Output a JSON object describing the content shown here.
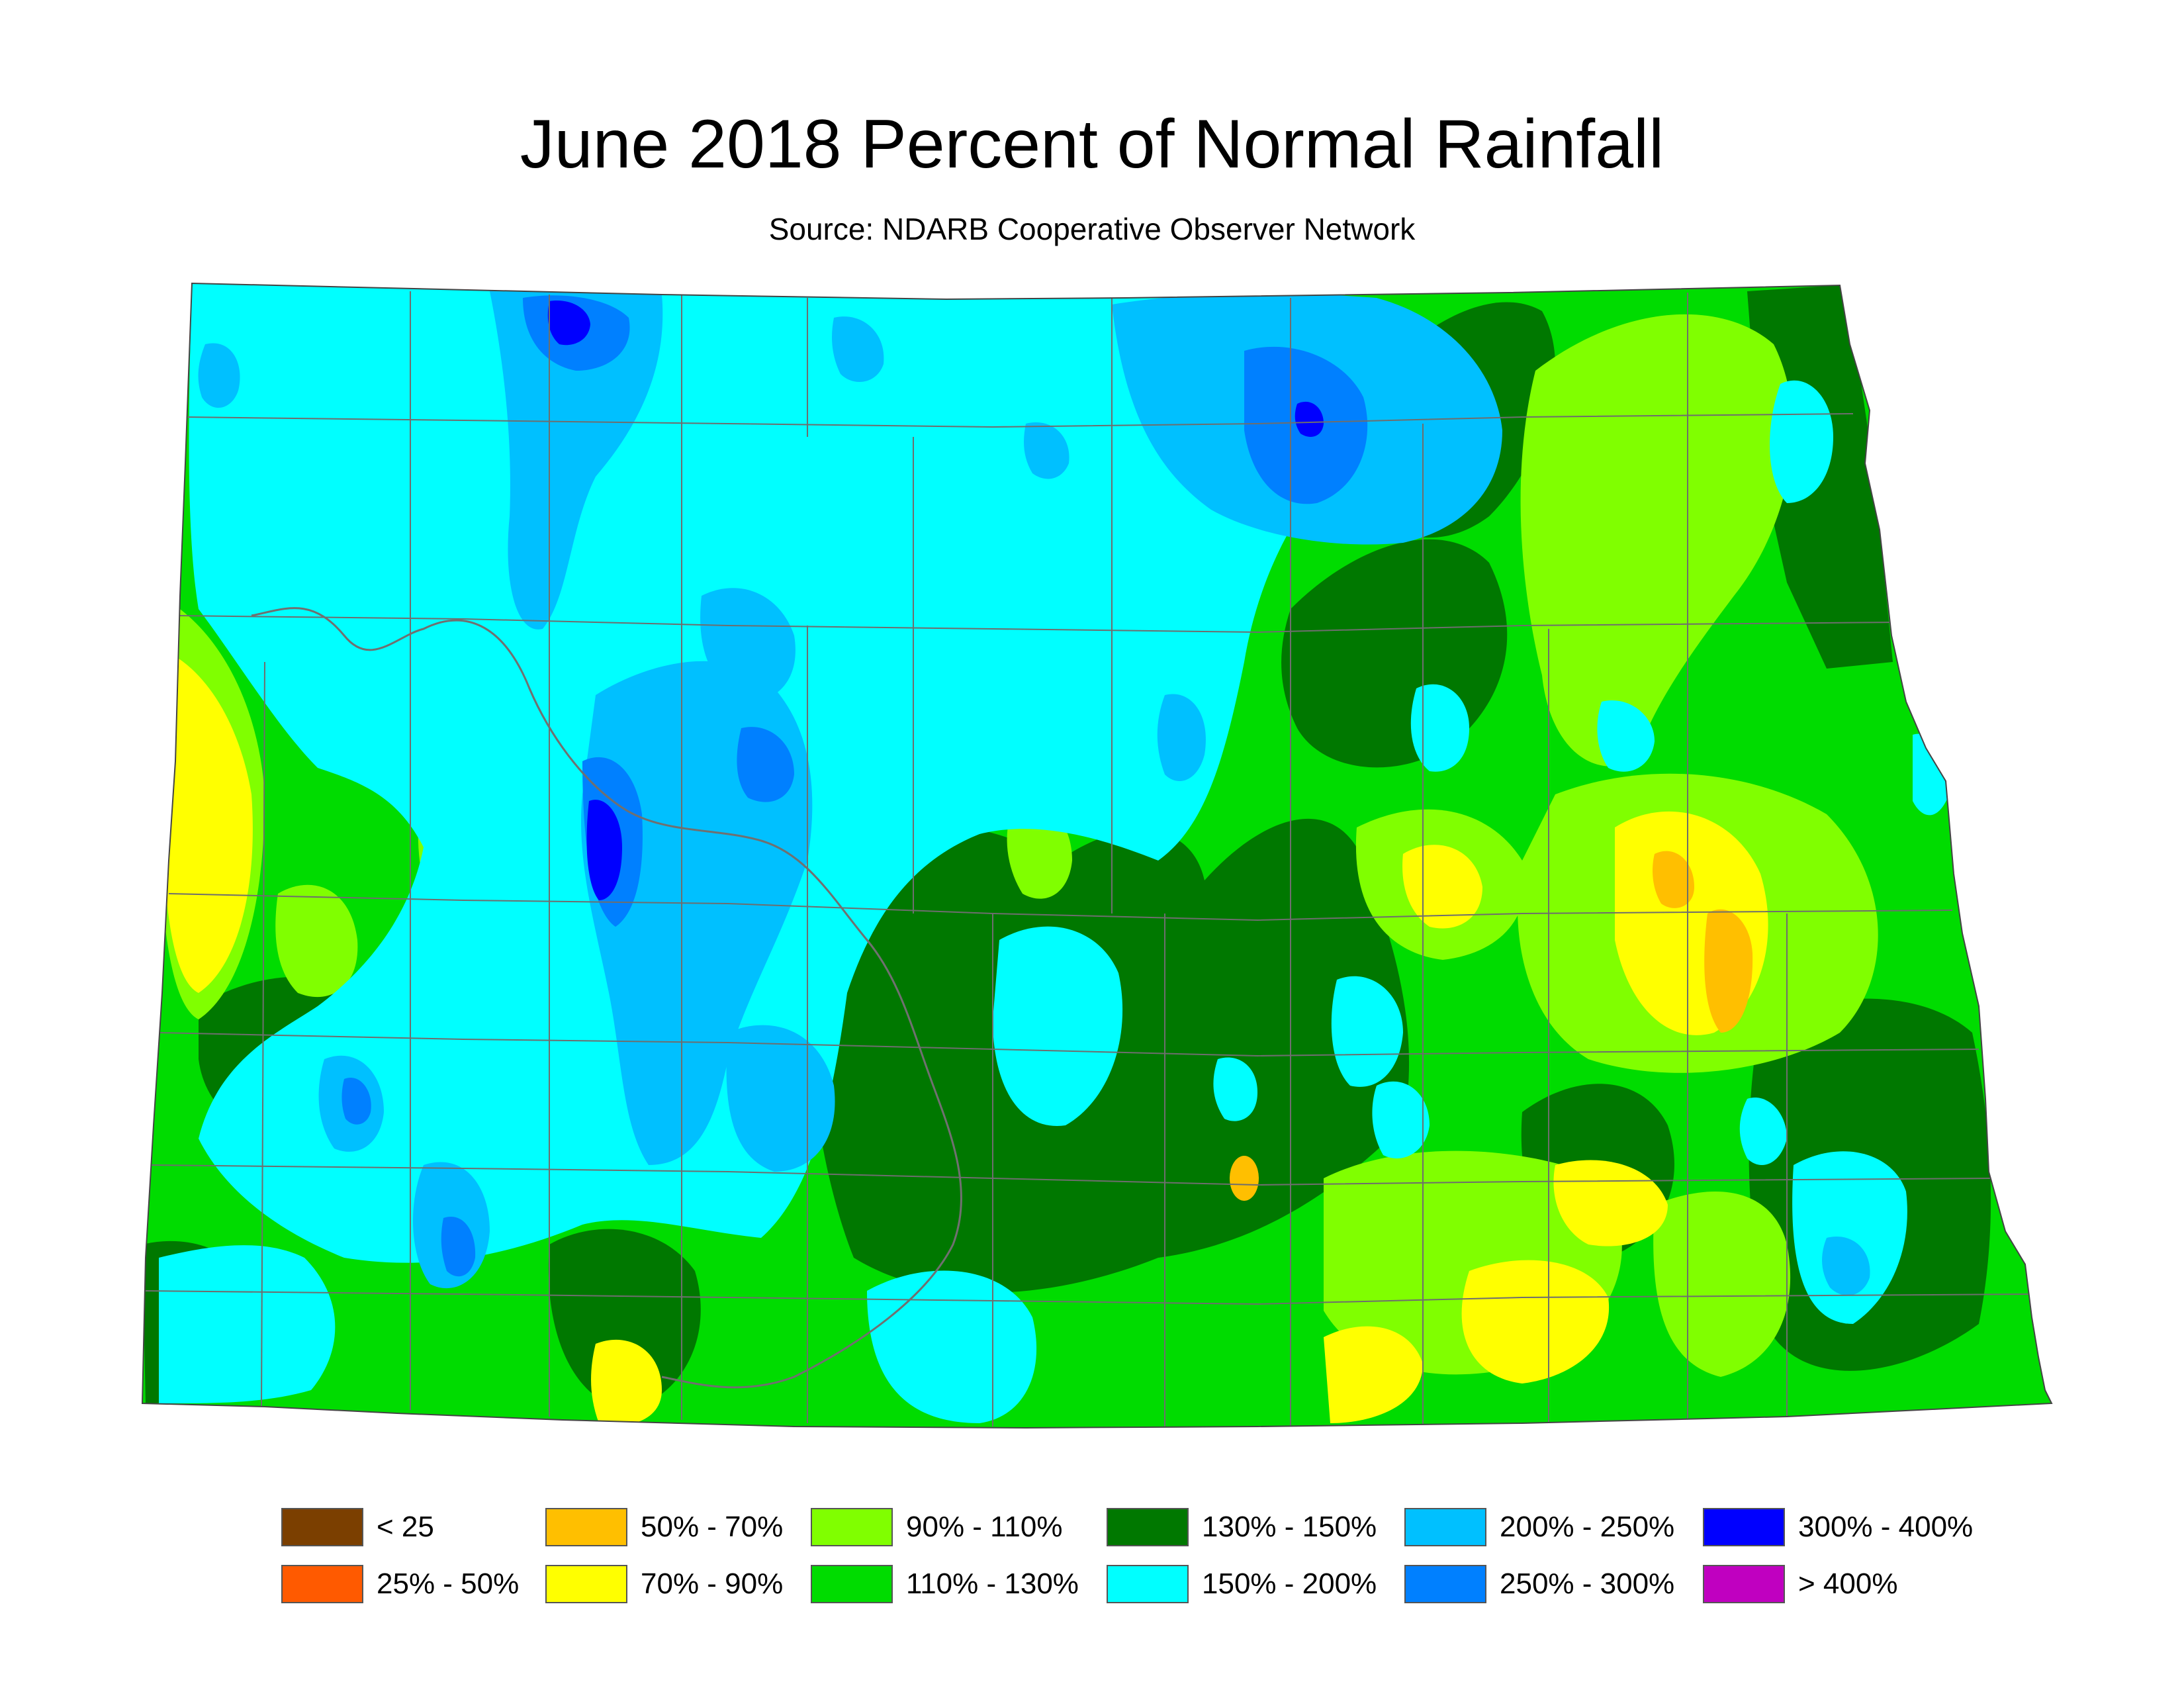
{
  "header": {
    "title": "June 2018 Percent of Normal Rainfall",
    "source": "Source: NDARB Cooperative Observer Network"
  },
  "colors": {
    "background": "#ffffff",
    "county_lines": "#6e6e6e",
    "river": "#707070"
  },
  "map": {
    "region": "North Dakota",
    "base_class": "110% - 130%"
  },
  "legend": {
    "items": [
      {
        "label": "< 25",
        "color": "#7b3f00"
      },
      {
        "label": "25% - 50%",
        "color": "#ff5a00"
      },
      {
        "label": "50% - 70%",
        "color": "#ffbf00"
      },
      {
        "label": "70% - 90%",
        "color": "#ffff00"
      },
      {
        "label": "90% - 110%",
        "color": "#80ff00"
      },
      {
        "label": "110% - 130%",
        "color": "#00dc00"
      },
      {
        "label": "130% - 150%",
        "color": "#007800"
      },
      {
        "label": "150% - 200%",
        "color": "#00ffff"
      },
      {
        "label": "200% - 250%",
        "color": "#00c0ff"
      },
      {
        "label": "250% - 300%",
        "color": "#0080ff"
      },
      {
        "label": "300% - 400%",
        "color": "#0000ff"
      },
      {
        "label": "> 400%",
        "color": "#c000c0"
      }
    ]
  }
}
